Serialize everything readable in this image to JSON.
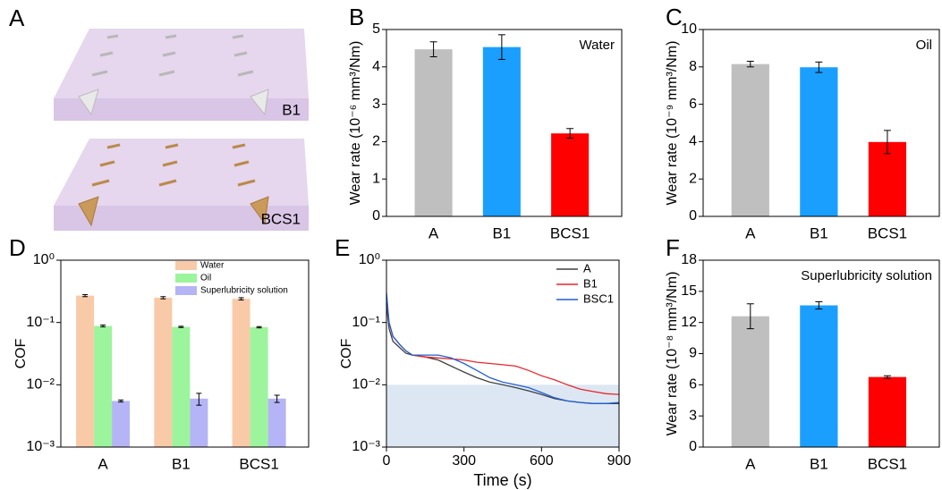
{
  "illustration": {
    "label": "A",
    "slabs": [
      "B1",
      "BCS1"
    ]
  },
  "chart_data": [
    {
      "type": "bar",
      "label": "B",
      "ylabel": "Wear rate (10⁻⁶ mm³/Nm)",
      "annotation": "Water",
      "categories": [
        "A",
        "B1",
        "BCS1"
      ],
      "values": [
        4.47,
        4.53,
        2.22
      ],
      "errors": [
        0.2,
        0.33,
        0.13
      ],
      "colors": [
        "#bfbfbf",
        "#1a9fff",
        "#ff0000"
      ],
      "ylim": [
        0,
        5
      ],
      "yticks": [
        0,
        1,
        2,
        3,
        4,
        5
      ]
    },
    {
      "type": "bar",
      "label": "C",
      "ylabel": "Wear rate (10⁻⁹ mm³/Nm)",
      "annotation": "Oil",
      "categories": [
        "A",
        "B1",
        "BCS1"
      ],
      "values": [
        8.15,
        7.98,
        3.98
      ],
      "errors": [
        0.15,
        0.28,
        0.62
      ],
      "colors": [
        "#bfbfbf",
        "#1a9fff",
        "#ff0000"
      ],
      "ylim": [
        0,
        10
      ],
      "yticks": [
        0,
        2,
        4,
        6,
        8,
        10
      ]
    },
    {
      "type": "grouped_bar",
      "label": "D",
      "ylabel": "COF",
      "log_scale": true,
      "legend": "top-right",
      "categories": [
        "A",
        "B1",
        "BCS1"
      ],
      "series": [
        {
          "name": "Water",
          "color": "#f9caa7",
          "values": [
            0.27,
            0.25,
            0.24
          ],
          "errors": [
            0.01,
            0.01,
            0.01
          ]
        },
        {
          "name": "Oil",
          "color": "#9cf59c",
          "values": [
            0.088,
            0.085,
            0.084
          ],
          "errors": [
            0.003,
            0.002,
            0.002
          ]
        },
        {
          "name": "Superlubricity solution",
          "color": "#b4b4f6",
          "values": [
            0.0055,
            0.006,
            0.006
          ],
          "errors": [
            0.0002,
            0.0013,
            0.0008
          ]
        }
      ],
      "ylim": [
        0.001,
        1
      ],
      "yticks": [
        {
          "value": 0.001,
          "label": "10⁻³"
        },
        {
          "value": 0.01,
          "label": "10⁻²"
        },
        {
          "value": 0.1,
          "label": "10⁻¹"
        },
        {
          "value": 1,
          "label": "10⁰"
        }
      ]
    },
    {
      "type": "line",
      "label": "E",
      "xlabel": "Time (s)",
      "ylabel": "COF",
      "log_scale": true,
      "legend": "top-right",
      "x": [
        0,
        10,
        25,
        50,
        75,
        100,
        150,
        200,
        250,
        300,
        350,
        400,
        450,
        500,
        550,
        600,
        650,
        700,
        750,
        800,
        850,
        900
      ],
      "xlim": [
        0,
        900
      ],
      "xticks": [
        0,
        300,
        600,
        900
      ],
      "ylim": [
        0.001,
        1
      ],
      "yticks": [
        {
          "value": 0.001,
          "label": "10⁻³"
        },
        {
          "value": 0.01,
          "label": "10⁻²"
        },
        {
          "value": 0.1,
          "label": "10⁻¹"
        },
        {
          "value": 1,
          "label": "10⁰"
        }
      ],
      "shaded_band": [
        0.001,
        0.01
      ],
      "shade_color": "#dce7f3",
      "series": [
        {
          "name": "A",
          "color": "#404040",
          "values": [
            0.2,
            0.08,
            0.05,
            0.04,
            0.032,
            0.03,
            0.028,
            0.025,
            0.02,
            0.016,
            0.013,
            0.011,
            0.01,
            0.009,
            0.008,
            0.007,
            0.006,
            0.0055,
            0.0052,
            0.005,
            0.005,
            0.005
          ]
        },
        {
          "name": "B1",
          "color": "#e8262a",
          "values": [
            0.25,
            0.1,
            0.06,
            0.045,
            0.035,
            0.03,
            0.028,
            0.027,
            0.026,
            0.025,
            0.023,
            0.022,
            0.021,
            0.02,
            0.017,
            0.014,
            0.012,
            0.01,
            0.0085,
            0.0078,
            0.0072,
            0.007
          ]
        },
        {
          "name": "BSC1",
          "color": "#1f5fd6",
          "values": [
            0.3,
            0.1,
            0.06,
            0.045,
            0.035,
            0.03,
            0.03,
            0.03,
            0.027,
            0.022,
            0.017,
            0.013,
            0.011,
            0.01,
            0.009,
            0.0075,
            0.0062,
            0.0055,
            0.0052,
            0.005,
            0.005,
            0.0052
          ]
        }
      ]
    },
    {
      "type": "bar",
      "label": "F",
      "ylabel": "Wear rate (10⁻⁸ mm³/Nm)",
      "annotation": "Superlubricity solution",
      "categories": [
        "A",
        "B1",
        "BCS1"
      ],
      "values": [
        12.6,
        13.65,
        6.75
      ],
      "errors": [
        1.2,
        0.35,
        0.12
      ],
      "colors": [
        "#bfbfbf",
        "#1a9fff",
        "#ff0000"
      ],
      "ylim": [
        0,
        18
      ],
      "yticks": [
        0,
        3,
        6,
        9,
        12,
        15,
        18
      ]
    }
  ]
}
